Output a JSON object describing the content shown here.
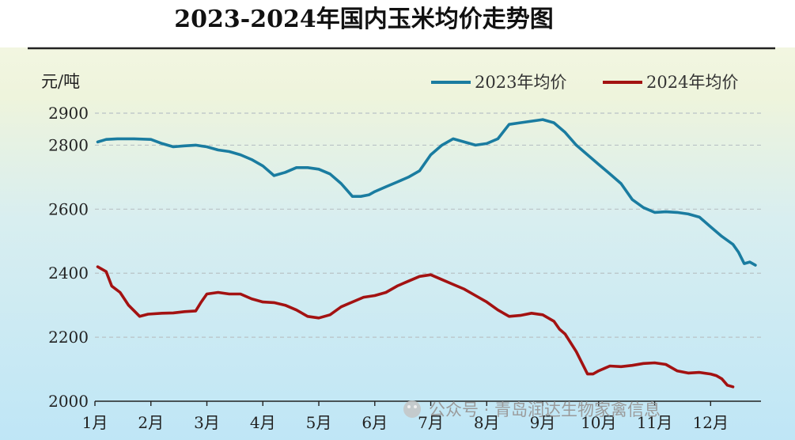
{
  "chart_data": {
    "type": "line",
    "title": "2023-2024年国内玉米均价走势图",
    "ylabel": "元/吨",
    "xlabel": "",
    "ylim": [
      2000,
      2900
    ],
    "yticks": [
      2000,
      2200,
      2400,
      2600,
      2800,
      2900
    ],
    "xlim": [
      1,
      12.9
    ],
    "categories": [
      "1月",
      "2月",
      "3月",
      "4月",
      "5月",
      "6月",
      "7月",
      "8月",
      "9月",
      "10月",
      "11月",
      "12月"
    ],
    "grid": true,
    "legend_position": "top-right",
    "series": [
      {
        "name": "2023年均价",
        "color": "#1a7ca0",
        "x": [
          1.05,
          1.2,
          1.4,
          1.7,
          2.0,
          2.2,
          2.4,
          2.6,
          2.8,
          3.0,
          3.2,
          3.4,
          3.6,
          3.8,
          4.0,
          4.2,
          4.4,
          4.6,
          4.8,
          5.0,
          5.2,
          5.4,
          5.5,
          5.6,
          5.75,
          5.9,
          6.0,
          6.2,
          6.4,
          6.6,
          6.8,
          7.0,
          7.2,
          7.4,
          7.6,
          7.8,
          8.0,
          8.2,
          8.4,
          8.6,
          8.8,
          9.0,
          9.2,
          9.4,
          9.6,
          9.8,
          10.0,
          10.2,
          10.4,
          10.6,
          10.8,
          11.0,
          11.2,
          11.4,
          11.6,
          11.8,
          12.0,
          12.2,
          12.4,
          12.5,
          12.6,
          12.7,
          12.8
        ],
        "values": [
          2810,
          2818,
          2820,
          2820,
          2818,
          2805,
          2795,
          2798,
          2800,
          2795,
          2785,
          2780,
          2770,
          2755,
          2735,
          2705,
          2715,
          2730,
          2730,
          2725,
          2710,
          2680,
          2660,
          2640,
          2640,
          2645,
          2655,
          2670,
          2685,
          2700,
          2720,
          2770,
          2800,
          2820,
          2810,
          2800,
          2805,
          2820,
          2865,
          2870,
          2875,
          2880,
          2870,
          2840,
          2800,
          2770,
          2740,
          2710,
          2680,
          2630,
          2605,
          2590,
          2592,
          2590,
          2585,
          2575,
          2545,
          2515,
          2490,
          2465,
          2430,
          2435,
          2425
        ]
      },
      {
        "name": "2024年均价",
        "color": "#a31212",
        "x": [
          1.05,
          1.2,
          1.3,
          1.45,
          1.6,
          1.8,
          1.95,
          2.2,
          2.4,
          2.6,
          2.8,
          2.9,
          3.0,
          3.2,
          3.4,
          3.6,
          3.8,
          4.0,
          4.2,
          4.4,
          4.6,
          4.8,
          5.0,
          5.2,
          5.4,
          5.6,
          5.8,
          6.0,
          6.2,
          6.4,
          6.6,
          6.8,
          7.0,
          7.2,
          7.4,
          7.6,
          7.8,
          8.0,
          8.2,
          8.4,
          8.6,
          8.8,
          9.0,
          9.2,
          9.3,
          9.4,
          9.6,
          9.8,
          9.9,
          10.0,
          10.2,
          10.4,
          10.6,
          10.8,
          11.0,
          11.2,
          11.4,
          11.6,
          11.8,
          12.0,
          12.1,
          12.2,
          12.3,
          12.4
        ],
        "values": [
          2420,
          2405,
          2360,
          2340,
          2300,
          2265,
          2272,
          2275,
          2276,
          2280,
          2282,
          2310,
          2335,
          2340,
          2335,
          2335,
          2320,
          2310,
          2308,
          2300,
          2285,
          2265,
          2260,
          2270,
          2295,
          2310,
          2325,
          2330,
          2340,
          2360,
          2375,
          2390,
          2395,
          2380,
          2365,
          2350,
          2330,
          2310,
          2285,
          2265,
          2268,
          2275,
          2270,
          2250,
          2225,
          2210,
          2155,
          2085,
          2085,
          2095,
          2110,
          2108,
          2112,
          2118,
          2120,
          2115,
          2095,
          2088,
          2090,
          2085,
          2080,
          2070,
          2050,
          2045
        ]
      }
    ]
  },
  "watermark": "公众号 · 青岛润达生物家禽信息"
}
